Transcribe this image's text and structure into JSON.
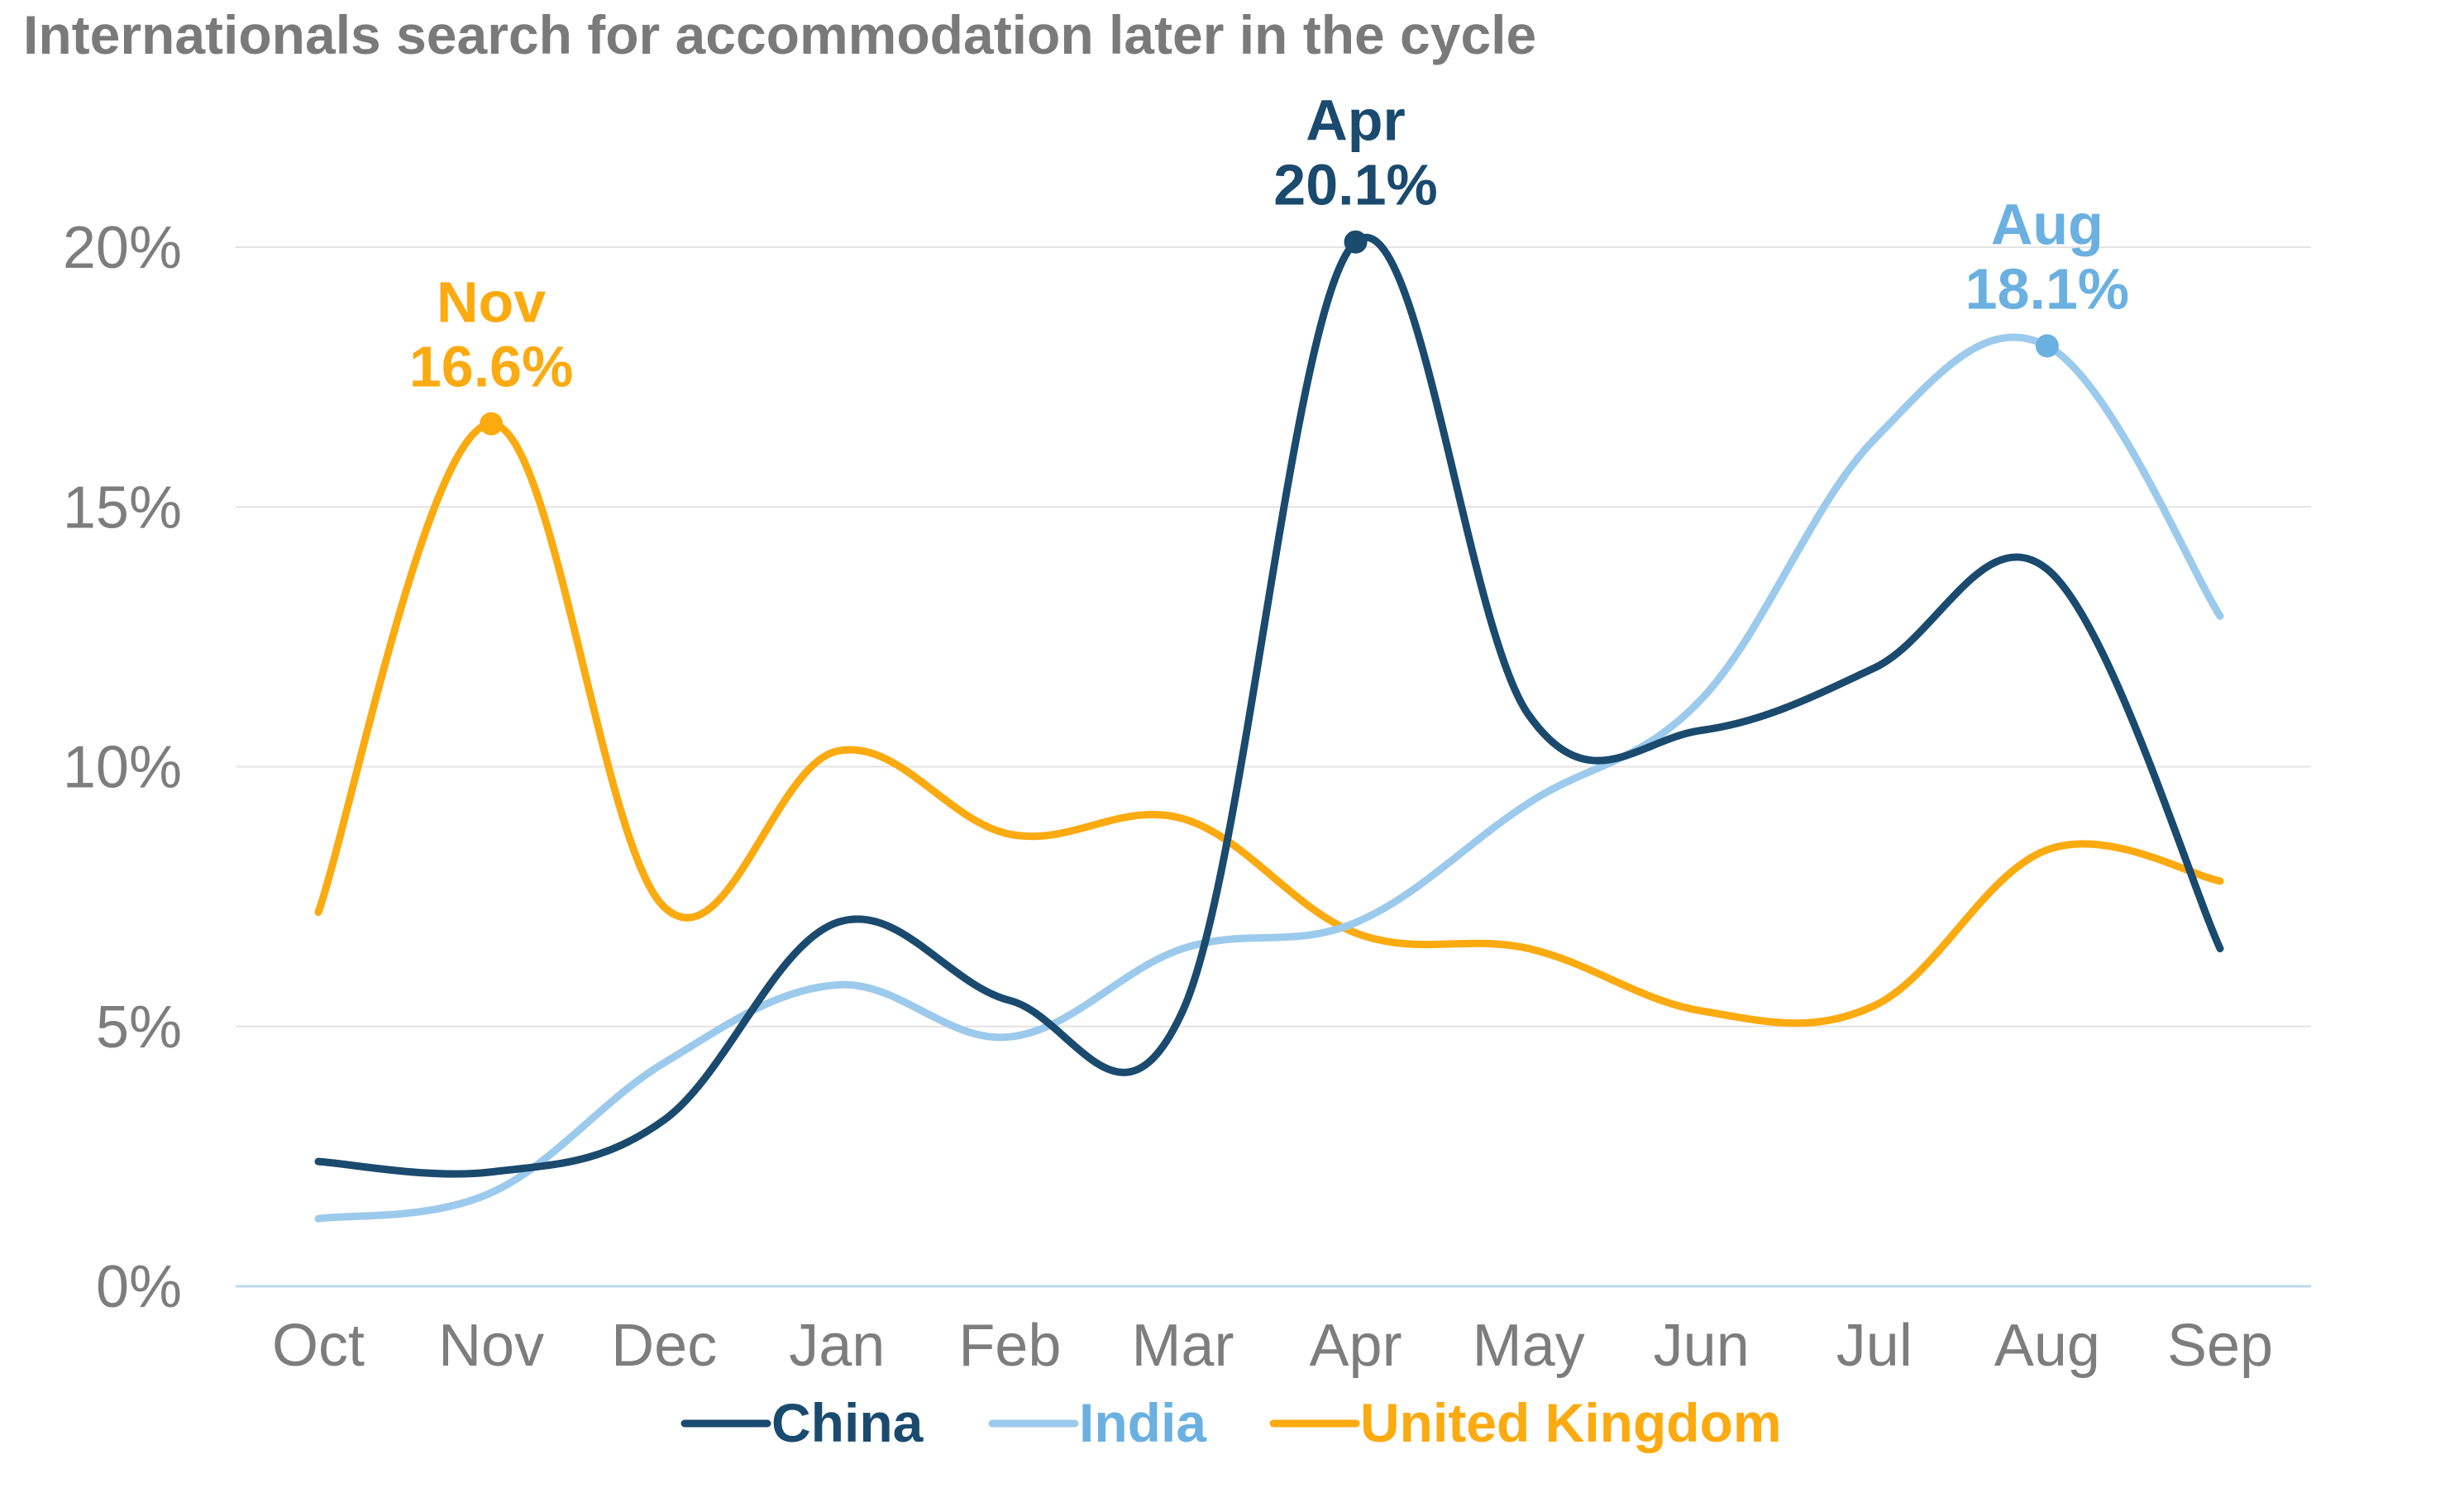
{
  "chart_data": {
    "type": "line",
    "title": "Internationals search for accommodation later in the cycle",
    "xlabel": "",
    "ylabel": "",
    "categories": [
      "Oct",
      "Nov",
      "Dec",
      "Jan",
      "Feb",
      "Mar",
      "Apr",
      "May",
      "Jun",
      "Jul",
      "Aug",
      "Sep"
    ],
    "ylim": [
      0,
      20
    ],
    "yticks": [
      0,
      5,
      10,
      15,
      20
    ],
    "ytick_labels": [
      "0%",
      "5%",
      "10%",
      "15%",
      "20%"
    ],
    "grid": true,
    "legend_position": "bottom",
    "series": [
      {
        "name": "China",
        "color": "#1a4a6e",
        "values": [
          2.4,
          2.2,
          3.2,
          7.0,
          5.5,
          5.3,
          20.1,
          11.0,
          10.7,
          11.9,
          13.8,
          6.5
        ],
        "peak": {
          "index": 6,
          "month_label": "Apr",
          "value_label": "20.1%"
        }
      },
      {
        "name": "India",
        "color": "#9ccaec",
        "label_color": "#6ab0e0",
        "values": [
          1.3,
          1.8,
          4.3,
          5.8,
          4.8,
          6.5,
          7.0,
          9.3,
          11.3,
          16.3,
          18.1,
          12.9
        ],
        "peak": {
          "index": 10,
          "month_label": "Aug",
          "value_label": "18.1%"
        }
      },
      {
        "name": "United Kingdom",
        "color": "#fbaa0f",
        "values": [
          7.2,
          16.6,
          7.3,
          10.3,
          8.7,
          9.0,
          6.8,
          6.5,
          5.3,
          5.4,
          8.4,
          7.8
        ],
        "peak": {
          "index": 1,
          "month_label": "Nov",
          "value_label": "16.6%"
        }
      }
    ]
  }
}
